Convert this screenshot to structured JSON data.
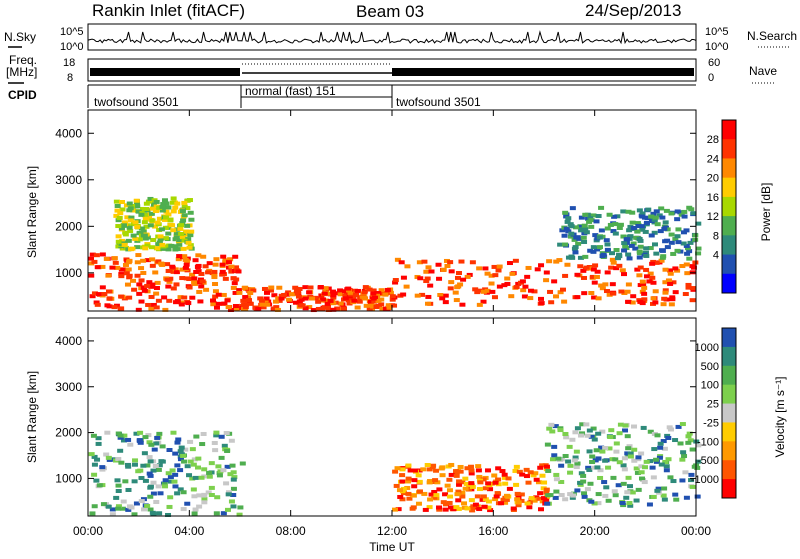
{
  "header": {
    "station": "Rankin Inlet (fitACF)",
    "beam": "Beam 03",
    "date": "24/Sep/2013"
  },
  "top_panels": {
    "nsky_label": "N.Sky",
    "nsky_ticks": [
      "10^5",
      "10^0"
    ],
    "nsearch_label": "N.Search",
    "nsearch_ticks": [
      "10^5",
      "10^0"
    ],
    "freq_label_1": "Freq.",
    "freq_label_2": "[MHz]",
    "freq_ticks": [
      "18",
      "8"
    ],
    "nave_label": "Nave",
    "nave_ticks": [
      "60",
      "0"
    ],
    "cpid_label": "CPID",
    "cpid_segments": [
      {
        "label": "twofsound 3501",
        "start_hour": 0,
        "end_hour": 6
      },
      {
        "label": "normal (fast) 151",
        "start_hour": 6,
        "end_hour": 12
      },
      {
        "label": "twofsound 3501",
        "start_hour": 12,
        "end_hour": 24
      }
    ]
  },
  "chart_data": [
    {
      "type": "heatmap",
      "panel": "power",
      "ylabel": "Slant Range [km]",
      "yticks": [
        "4000",
        "3000",
        "2000",
        "1000"
      ],
      "ylim": [
        180,
        4500
      ],
      "xlim": [
        0,
        24
      ],
      "colorbar_label": "Power [dB]",
      "colorbar_ticks": [
        "28",
        "24",
        "20",
        "16",
        "12",
        "8",
        "4"
      ],
      "colorbar_colors": [
        "#ff0000",
        "#ff3300",
        "#ff8800",
        "#ffcc00",
        "#a8d800",
        "#4fae4f",
        "#2e8a7a",
        "#2050b0",
        "#0000ff"
      ],
      "regions": [
        {
          "t0": 0,
          "t1": 6,
          "r0": 200,
          "r1": 1400,
          "level": "high"
        },
        {
          "t0": 6,
          "t1": 12,
          "r0": 200,
          "r1": 700,
          "level": "high"
        },
        {
          "t0": 12,
          "t1": 24,
          "r0": 300,
          "r1": 1300,
          "level": "high"
        },
        {
          "t0": 18.5,
          "t1": 24,
          "r0": 1300,
          "r1": 2400,
          "level": "low"
        },
        {
          "t0": 1,
          "t1": 4,
          "r0": 1500,
          "r1": 2600,
          "level": "mid"
        }
      ]
    },
    {
      "type": "heatmap",
      "panel": "velocity",
      "ylabel": "Slant Range [km]",
      "yticks": [
        "4000",
        "3000",
        "2000",
        "1000"
      ],
      "ylim": [
        180,
        4500
      ],
      "xlim": [
        0,
        24
      ],
      "colorbar_label": "Velocity [m s⁻¹]",
      "colorbar_ticks": [
        "1000",
        "500",
        "100",
        "25",
        "-25",
        "-100",
        "-500",
        "-1000"
      ],
      "colorbar_colors": [
        "#2050b0",
        "#2e8a7a",
        "#4fae4f",
        "#7dd04d",
        "#c8c8c8",
        "#ffcc00",
        "#ff9900",
        "#ff5500",
        "#ff0000"
      ],
      "regions": [
        {
          "t0": 0,
          "t1": 6,
          "r0": 200,
          "r1": 2000,
          "level": "positive"
        },
        {
          "t0": 12,
          "t1": 18,
          "r0": 300,
          "r1": 1300,
          "level": "negative"
        },
        {
          "t0": 18,
          "t1": 24,
          "r0": 400,
          "r1": 2200,
          "level": "positive"
        }
      ]
    }
  ],
  "xaxis": {
    "ticks": [
      "00:00",
      "04:00",
      "08:00",
      "12:00",
      "16:00",
      "20:00",
      "00:00"
    ],
    "label": "Time UT"
  }
}
